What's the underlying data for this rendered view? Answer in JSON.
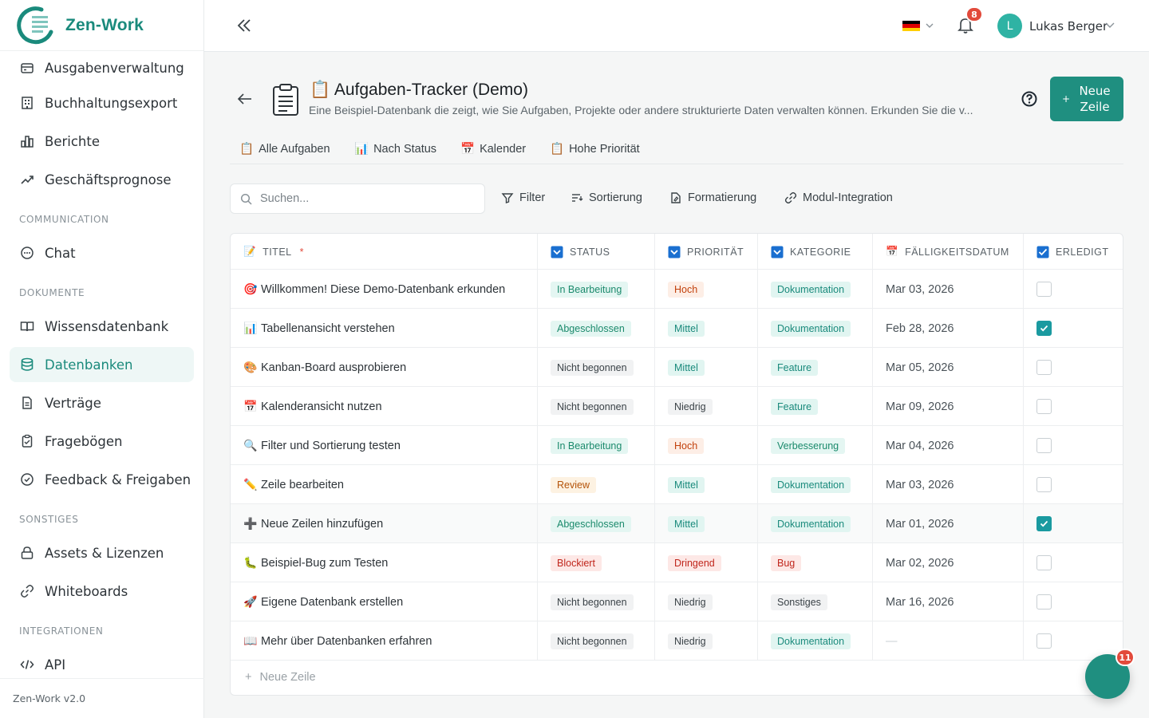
{
  "app": {
    "name": "Zen-Work",
    "version": "Zen-Work v2.0",
    "accent": "#1f8f80"
  },
  "sidebar": {
    "items": [
      {
        "label": "Ausgabenverwaltung",
        "icon": "expense-icon"
      },
      {
        "label": "Buchhaltungsexport",
        "icon": "building-icon"
      },
      {
        "label": "Berichte",
        "icon": "chart-icon"
      },
      {
        "label": "Geschäftsprognose",
        "icon": "trend-icon"
      }
    ],
    "sections": {
      "communication": "COMMUNICATION",
      "dokumente": "DOKUMENTE",
      "sonstiges": "SONSTIGES",
      "integrationen": "INTEGRATIONEN"
    },
    "communication_items": [
      {
        "label": "Chat",
        "icon": "chat-icon"
      }
    ],
    "dokumente_items": [
      {
        "label": "Wissensdatenbank",
        "icon": "book-icon"
      },
      {
        "label": "Datenbanken",
        "icon": "database-icon",
        "active": true
      },
      {
        "label": "Verträge",
        "icon": "file-icon"
      },
      {
        "label": "Fragebögen",
        "icon": "clipboard-icon"
      },
      {
        "label": "Feedback & Freigaben",
        "icon": "check-circle-icon"
      }
    ],
    "sonstiges_items": [
      {
        "label": "Assets & Lizenzen",
        "icon": "lock-icon"
      },
      {
        "label": "Whiteboards",
        "icon": "link-icon"
      }
    ],
    "integrationen_items": [
      {
        "label": "API",
        "icon": "code-icon"
      }
    ]
  },
  "topbar": {
    "notification_count": "8",
    "user_initial": "L",
    "user_name": "Lukas Berger",
    "language": "de"
  },
  "database": {
    "title": "📋 Aufgaben-Tracker (Demo)",
    "description": "Eine Beispiel-Datenbank die zeigt, wie Sie Aufgaben, Projekte oder andere strukturierte Daten verwalten können. Erkunden Sie die v...",
    "new_row_button": "Neue Zeile"
  },
  "views": [
    {
      "label": "Alle Aufgaben",
      "icon": "clipboard-icon"
    },
    {
      "label": "Nach Status",
      "icon": "bar-chart-icon"
    },
    {
      "label": "Kalender",
      "icon": "calendar-icon"
    },
    {
      "label": "Hohe Priorität",
      "icon": "clipboard-icon"
    }
  ],
  "toolbar": {
    "search_placeholder": "Suchen...",
    "filter": "Filter",
    "sort": "Sortierung",
    "format": "Formatierung",
    "module": "Modul-Integration"
  },
  "table": {
    "headers": {
      "title": "TITEL",
      "status": "STATUS",
      "priority": "PRIORITÄT",
      "category": "KATEGORIE",
      "due": "FÄLLIGKEITSDATUM",
      "done": "ERLEDIGT"
    },
    "rows": [
      {
        "emoji": "🎯",
        "title": "Willkommen! Diese Demo-Datenbank erkunden",
        "status": "In Bearbeitung",
        "priority": "Hoch",
        "category": "Dokumentation",
        "due": "Mar 03, 2026",
        "done": false
      },
      {
        "emoji": "📊",
        "title": "Tabellenansicht verstehen",
        "status": "Abgeschlossen",
        "priority": "Mittel",
        "category": "Dokumentation",
        "due": "Feb 28, 2026",
        "done": true
      },
      {
        "emoji": "🎨",
        "title": "Kanban-Board ausprobieren",
        "status": "Nicht begonnen",
        "priority": "Mittel",
        "category": "Feature",
        "due": "Mar 05, 2026",
        "done": false
      },
      {
        "emoji": "📅",
        "title": "Kalenderansicht nutzen",
        "status": "Nicht begonnen",
        "priority": "Niedrig",
        "category": "Feature",
        "due": "Mar 09, 2026",
        "done": false
      },
      {
        "emoji": "🔍",
        "title": "Filter und Sortierung testen",
        "status": "In Bearbeitung",
        "priority": "Hoch",
        "category": "Verbesserung",
        "due": "Mar 04, 2026",
        "done": false
      },
      {
        "emoji": "✏️",
        "title": "Zeile bearbeiten",
        "status": "Review",
        "priority": "Mittel",
        "category": "Dokumentation",
        "due": "Mar 03, 2026",
        "done": false
      },
      {
        "emoji": "➕",
        "title": "Neue Zeilen hinzufügen",
        "status": "Abgeschlossen",
        "priority": "Mittel",
        "category": "Dokumentation",
        "due": "Mar 01, 2026",
        "done": true
      },
      {
        "emoji": "🐛",
        "title": "Beispiel-Bug zum Testen",
        "status": "Blockiert",
        "priority": "Dringend",
        "category": "Bug",
        "due": "Mar 02, 2026",
        "done": false
      },
      {
        "emoji": "🚀",
        "title": "Eigene Datenbank erstellen",
        "status": "Nicht begonnen",
        "priority": "Niedrig",
        "category": "Sonstiges",
        "due": "Mar 16, 2026",
        "done": false
      },
      {
        "emoji": "📖",
        "title": "Mehr über Datenbanken erfahren",
        "status": "Nicht begonnen",
        "priority": "Niedrig",
        "category": "Dokumentation",
        "due": "—",
        "done": false
      }
    ],
    "add_row": "Neue Zeile"
  },
  "fab": {
    "badge": "11"
  }
}
